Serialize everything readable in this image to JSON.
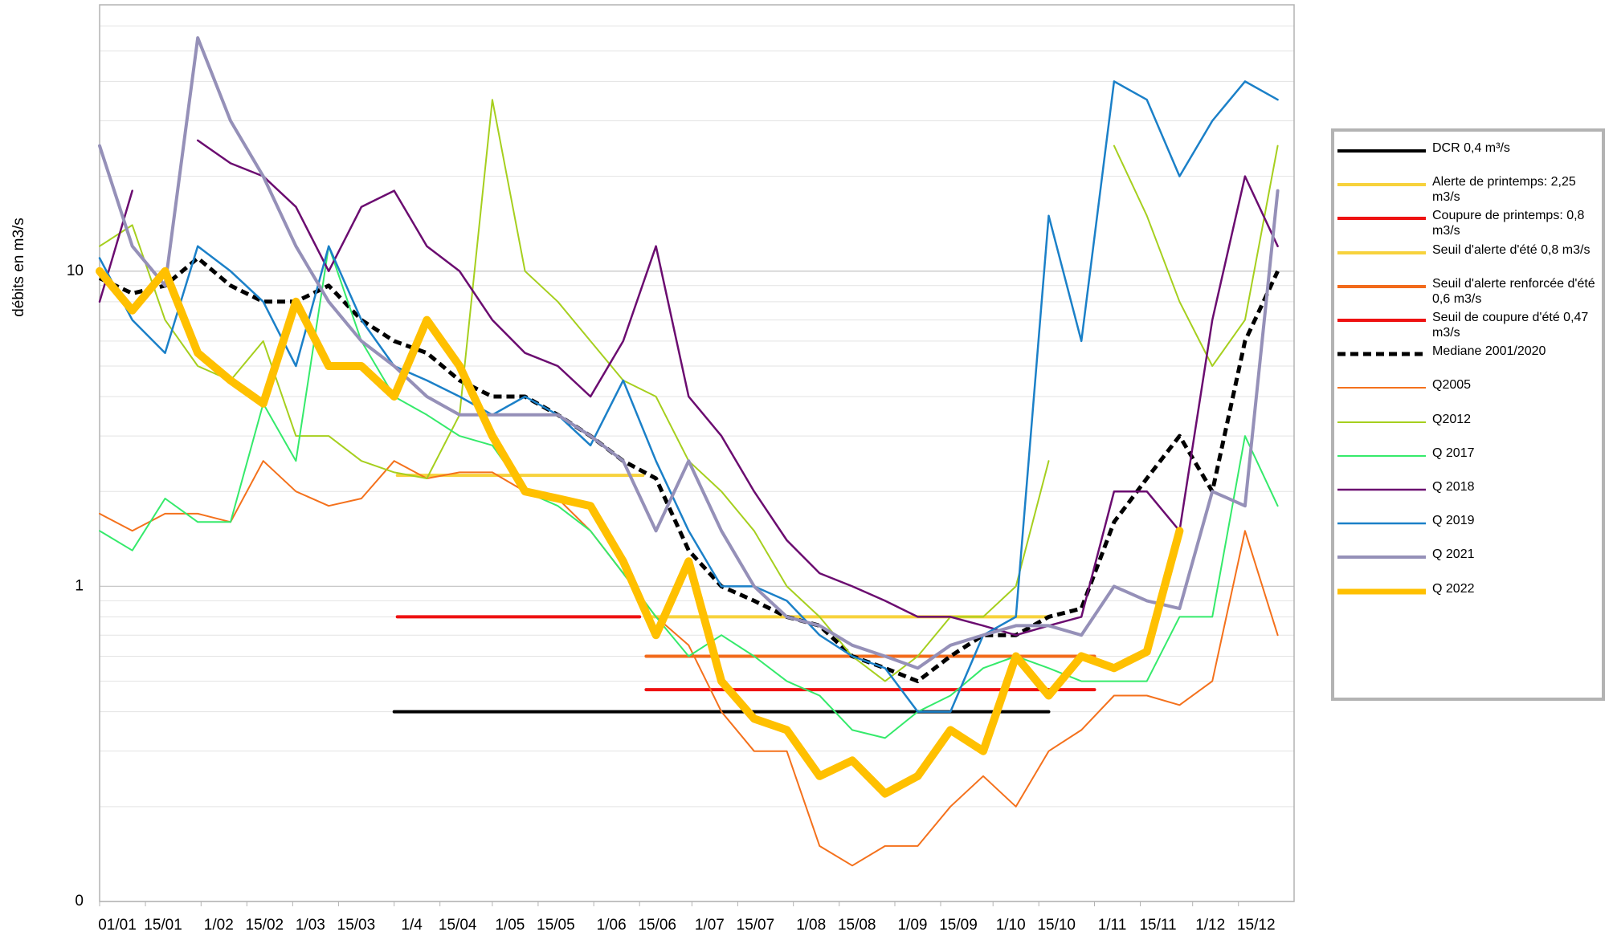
{
  "chart_data": {
    "type": "line",
    "y_label": "débits en m3/s",
    "log_scale": true,
    "grid": true,
    "legend_position": "right",
    "xlim": [
      1,
      366
    ],
    "xticks": [
      {
        "value": 1,
        "label": "01/01"
      },
      {
        "value": 15,
        "label": "15/01"
      },
      {
        "value": 32,
        "label": "1/02"
      },
      {
        "value": 46,
        "label": "15/02"
      },
      {
        "value": 60,
        "label": "1/03"
      },
      {
        "value": 74,
        "label": "15/03"
      },
      {
        "value": 91,
        "label": "1/4"
      },
      {
        "value": 105,
        "label": "15/04"
      },
      {
        "value": 121,
        "label": "1/05"
      },
      {
        "value": 135,
        "label": "15/05"
      },
      {
        "value": 152,
        "label": "1/06"
      },
      {
        "value": 166,
        "label": "15/06"
      },
      {
        "value": 182,
        "label": "1/07"
      },
      {
        "value": 196,
        "label": "15/07"
      },
      {
        "value": 213,
        "label": "1/08"
      },
      {
        "value": 227,
        "label": "15/08"
      },
      {
        "value": 244,
        "label": "1/09"
      },
      {
        "value": 258,
        "label": "15/09"
      },
      {
        "value": 274,
        "label": "1/10"
      },
      {
        "value": 288,
        "label": "15/10"
      },
      {
        "value": 305,
        "label": "1/11"
      },
      {
        "value": 319,
        "label": "15/11"
      },
      {
        "value": 335,
        "label": "1/12"
      },
      {
        "value": 349,
        "label": "15/12"
      }
    ],
    "ylim": [
      0.1,
      70
    ],
    "yticks": [
      {
        "value": 0.1,
        "label": "0"
      },
      1,
      10
    ],
    "minor_gridlines": [
      0.2,
      0.3,
      0.4,
      0.5,
      0.6,
      0.7,
      0.8,
      0.9,
      2,
      3,
      4,
      5,
      6,
      7,
      8,
      9,
      20,
      30,
      40,
      50,
      60
    ],
    "x": [
      1,
      11,
      21,
      31,
      41,
      51,
      61,
      71,
      81,
      91,
      101,
      111,
      121,
      131,
      141,
      151,
      161,
      171,
      181,
      191,
      201,
      211,
      221,
      231,
      241,
      251,
      261,
      271,
      281,
      291,
      301,
      311,
      321,
      331,
      341,
      351,
      361
    ],
    "series": [
      {
        "name": "DCR 0,4 m³/s",
        "color": "#000000",
        "width": 4,
        "x": [
          91,
          291
        ],
        "values": [
          0.4,
          0.4
        ]
      },
      {
        "name": "Alerte de printemps: 2,25 m3/s",
        "color": "#f7d23c",
        "width": 4,
        "x": [
          92,
          167
        ],
        "values": [
          2.25,
          2.25
        ]
      },
      {
        "name": "Coupure de printemps: 0,8 m3/s",
        "color": "#ee1111",
        "width": 4,
        "x": [
          92,
          166
        ],
        "values": [
          0.8,
          0.8
        ]
      },
      {
        "name": "Seuil d'alerte d'été 0,8 m3/s",
        "color": "#f7d23c",
        "width": 4,
        "x": [
          168,
          291
        ],
        "values": [
          0.8,
          0.8
        ]
      },
      {
        "name": "Seuil d'alerte renforcée d'été 0,6 m3/s",
        "color": "#f26a1b",
        "width": 4,
        "x": [
          168,
          305
        ],
        "values": [
          0.6,
          0.6
        ]
      },
      {
        "name": "Seuil de coupure d'été 0,47 m3/s",
        "color": "#ee1111",
        "width": 4,
        "x": [
          168,
          305
        ],
        "values": [
          0.47,
          0.47
        ]
      },
      {
        "name": "Mediane 2001/2020",
        "color": "#000000",
        "width": 5,
        "dashed": true,
        "values": [
          9.5,
          8.5,
          9,
          11,
          9,
          8,
          8,
          9,
          7,
          6,
          5.5,
          4.5,
          4,
          4,
          3.5,
          3,
          2.5,
          2.2,
          1.3,
          1.0,
          0.9,
          0.8,
          0.75,
          0.6,
          0.55,
          0.5,
          0.6,
          0.7,
          0.7,
          0.8,
          0.85,
          1.6,
          2.2,
          3,
          2,
          6,
          10
        ]
      },
      {
        "name": "Q2005",
        "color": "#f4711c",
        "width": 2,
        "values": [
          1.7,
          1.5,
          1.7,
          1.7,
          1.6,
          2.5,
          2,
          1.8,
          1.9,
          2.5,
          2.2,
          2.3,
          2.3,
          2.0,
          1.9,
          1.5,
          1.1,
          0.8,
          0.65,
          0.4,
          0.3,
          0.3,
          0.15,
          0.13,
          0.15,
          0.15,
          0.2,
          0.25,
          0.2,
          0.3,
          0.35,
          0.45,
          0.45,
          0.42,
          0.5,
          1.5,
          0.7
        ]
      },
      {
        "name": "Q2012",
        "color": "#a6cf1e",
        "width": 2,
        "values": [
          12,
          14,
          7,
          5,
          4.5,
          6,
          3,
          3,
          2.5,
          2.3,
          2.2,
          3.5,
          35,
          10,
          8,
          6,
          4.5,
          4,
          2.5,
          2,
          1.5,
          1.0,
          0.8,
          0.6,
          0.5,
          0.6,
          0.8,
          0.8,
          1.0,
          2.5,
          null,
          25,
          15,
          8,
          5,
          7,
          25
        ]
      },
      {
        "name": "Q 2017",
        "color": "#35ea6b",
        "width": 2,
        "values": [
          1.5,
          1.3,
          1.9,
          1.6,
          1.6,
          3.8,
          2.5,
          12,
          6,
          4,
          3.5,
          3,
          2.8,
          2,
          1.8,
          1.5,
          1.1,
          0.8,
          0.6,
          0.7,
          0.6,
          0.5,
          0.45,
          0.35,
          0.33,
          0.4,
          0.45,
          0.55,
          0.6,
          0.55,
          0.5,
          0.5,
          0.5,
          0.8,
          0.8,
          3,
          1.8
        ]
      },
      {
        "name": "Q 2018",
        "color": "#6b0c70",
        "width": 2.5,
        "values": [
          8,
          18,
          null,
          26,
          22,
          20,
          16,
          10,
          16,
          18,
          12,
          10,
          7,
          5.5,
          5,
          4,
          6,
          12,
          4,
          3,
          2,
          1.4,
          1.1,
          1.0,
          0.9,
          0.8,
          0.8,
          0.75,
          0.7,
          0.75,
          0.8,
          2,
          2,
          1.5,
          7,
          20,
          12
        ]
      },
      {
        "name": "Q 2019",
        "color": "#1b80c8",
        "width": 2.5,
        "values": [
          11,
          7,
          5.5,
          12,
          10,
          8,
          5,
          12,
          7,
          5,
          4.5,
          4,
          3.5,
          4,
          3.5,
          2.8,
          4.5,
          2.5,
          1.5,
          1.0,
          1.0,
          0.9,
          0.7,
          0.6,
          0.55,
          0.4,
          0.4,
          0.7,
          0.8,
          15,
          6,
          40,
          35,
          20,
          30,
          40,
          35
        ]
      },
      {
        "name": "Q 2021",
        "color": "#9590b8",
        "width": 4,
        "values": [
          25,
          12,
          9,
          55,
          30,
          20,
          12,
          8,
          6,
          5,
          4,
          3.5,
          3.5,
          3.5,
          3.5,
          3,
          2.5,
          1.5,
          2.5,
          1.5,
          1.0,
          0.8,
          0.75,
          0.65,
          0.6,
          0.55,
          0.65,
          0.7,
          0.75,
          0.75,
          0.7,
          1.0,
          0.9,
          0.85,
          2,
          1.8,
          18
        ]
      },
      {
        "name": "Q 2022",
        "color": "#ffc000",
        "width": 10,
        "values": [
          10,
          7.5,
          10,
          5.5,
          4.5,
          3.8,
          8,
          5,
          5,
          4,
          7,
          5,
          3,
          2,
          1.9,
          1.8,
          1.2,
          0.7,
          1.2,
          0.5,
          0.38,
          0.35,
          0.25,
          0.28,
          0.22,
          0.25,
          0.35,
          0.3,
          0.6,
          0.45,
          0.6,
          0.55,
          0.62,
          1.5,
          null,
          null,
          null
        ]
      }
    ]
  }
}
